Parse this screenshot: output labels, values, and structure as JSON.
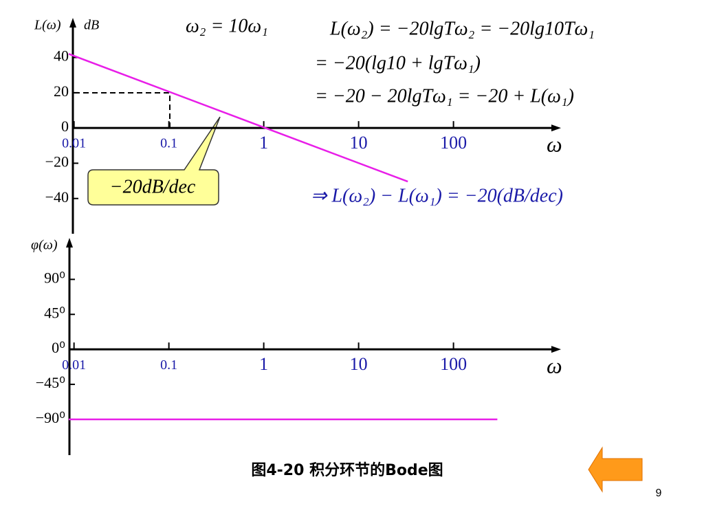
{
  "chart_data": [
    {
      "type": "line",
      "log_x": true,
      "y_label": "L(ω)",
      "y_unit": "dB",
      "x_label": "ω",
      "x": [
        0.0088,
        33
      ],
      "series": [
        {
          "color": "#e81ee8",
          "values": [
            42,
            -30.4
          ]
        }
      ],
      "xlim": [
        0.0088,
        1230
      ],
      "xticks": [
        0.01,
        0.1,
        1,
        10,
        100
      ],
      "ylim": [
        -60,
        57
      ],
      "yticks": [
        40,
        20,
        0,
        {
          "value": -20,
          "label": "−20"
        },
        {
          "value": -40,
          "label": "−40"
        }
      ]
    },
    {
      "type": "line",
      "log_x": true,
      "y_label": "φ(ω)",
      "x_label": "ω",
      "x": [
        0.0088,
        290
      ],
      "series": [
        {
          "color": "#e81ee8",
          "values": [
            -90,
            -90
          ]
        }
      ],
      "xlim": [
        0.0088,
        1230
      ],
      "xticks": [
        0.01,
        0.1,
        1,
        10,
        100
      ],
      "ylim": [
        -136,
        131
      ],
      "yticks": [
        {
          "value": 90,
          "label": "90⁰"
        },
        {
          "value": 45,
          "label": "45⁰"
        },
        {
          "value": 0,
          "label": "0⁰"
        },
        {
          "value": -45,
          "label": "−45⁰"
        },
        {
          "value": -90,
          "label": "−90⁰"
        }
      ]
    }
  ],
  "equations": [
    "ω₂ = 10ω₁",
    "L(ω₂) = −20lgTω₂ = −20lg10Tω₁",
    "= −20(lg10 + lgTω₁)",
    "= −20 − 20lgTω₁ = −20 + L(ω₁)",
    "⇒ L(ω₂) − L(ω₁) = −20(dB/dec)"
  ],
  "callout": "−20dB/dec",
  "caption": "图4-20 积分环节的Bode图",
  "page_number": "9"
}
